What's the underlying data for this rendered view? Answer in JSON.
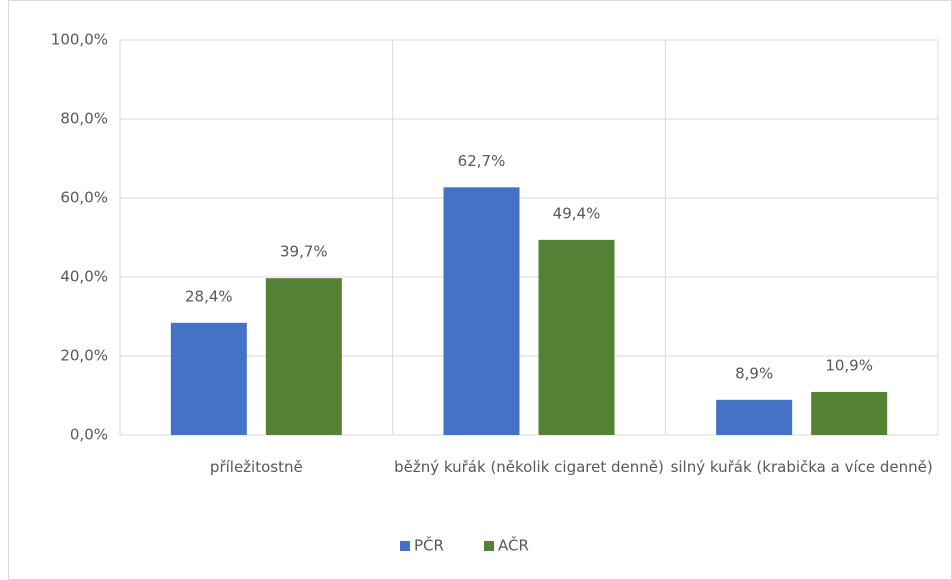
{
  "chart_data": {
    "type": "bar",
    "categories": [
      "příležitostně",
      "běžný kuřák (několik cigaret denně)",
      "silný kuřák (krabička a více denně)"
    ],
    "series": [
      {
        "name": "PČR",
        "color": "#4472c4",
        "values": [
          28.4,
          62.7,
          8.9
        ],
        "value_labels": [
          "28,4%",
          "62,7%",
          "8,9%"
        ]
      },
      {
        "name": "AČR",
        "color": "#548235",
        "values": [
          39.7,
          49.4,
          10.9
        ],
        "value_labels": [
          "39,7%",
          "49,4%",
          "10,9%"
        ]
      }
    ],
    "ylim": [
      0,
      100
    ],
    "yticks": [
      {
        "value": 0,
        "label": "0,0%"
      },
      {
        "value": 20,
        "label": "20,0%"
      },
      {
        "value": 40,
        "label": "40,0%"
      },
      {
        "value": 60,
        "label": "60,0%"
      },
      {
        "value": 80,
        "label": "80,0%"
      },
      {
        "value": 100,
        "label": "100,0%"
      }
    ],
    "grid": true,
    "legend": "bottom"
  }
}
